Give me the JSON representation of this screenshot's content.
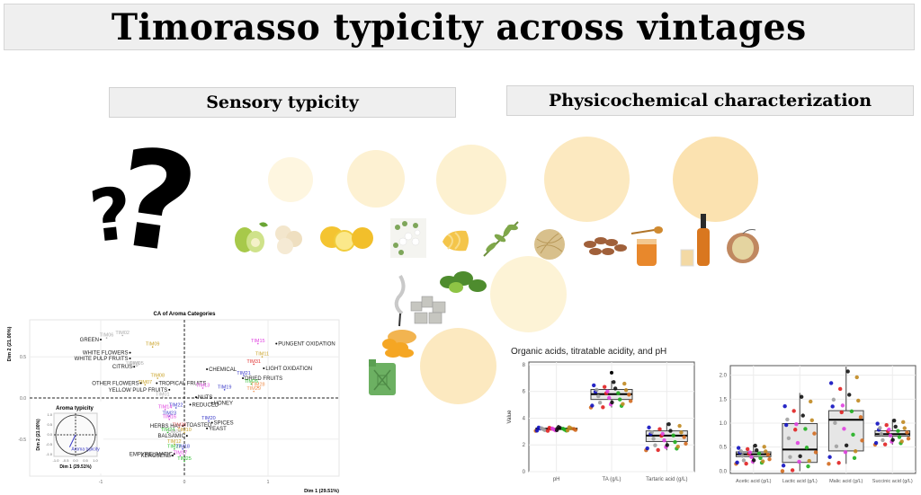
{
  "header": {
    "title": "Timorasso typicity across vintages"
  },
  "sections": {
    "sensory": "Sensory typicity",
    "physicochemical": "Physicochemical characterization"
  },
  "icons": {
    "question_large": "?",
    "question_small": "?",
    "aroma_icons": [
      "pear-icon",
      "banana-icon",
      "lemon-icon",
      "white-flowers-icon",
      "butter-icon",
      "herb-branch-icon",
      "hay-icon",
      "almonds-icon",
      "honey-icon",
      "whisky-icon",
      "oxidized-apple-icon",
      "smoke-icon",
      "stones-icon",
      "green-leaves-icon",
      "dried-apricot-icon",
      "jerry-can-icon"
    ]
  },
  "colors": {
    "bubble_light": "#fdf2d4",
    "bubble_mid": "#fce8be",
    "bubble_dark": "#fbe0ae",
    "header_bg": "#efefef"
  },
  "chart_data": [
    {
      "type": "scatter",
      "title": "CA of Aroma Categories",
      "xlabel": "Dim 1 (29.51%)",
      "ylabel": "Dim 2 (21.00%)",
      "xlim": [
        -1.85,
        1.85
      ],
      "ylim": [
        -0.95,
        0.95
      ],
      "xticks": [
        "-1",
        "0",
        "1"
      ],
      "yticks": [
        "-0.5",
        "0.0",
        "0.5"
      ],
      "grid": true,
      "categories": [
        {
          "label": "GREEN",
          "x": -1.0,
          "y": 0.71
        },
        {
          "label": "WHITE FLOWERS",
          "x": -0.65,
          "y": 0.55
        },
        {
          "label": "WHITE PULP FRUITS",
          "x": -0.65,
          "y": 0.48
        },
        {
          "label": "CITRUS",
          "x": -0.6,
          "y": 0.38
        },
        {
          "label": "OTHER FLOWERS",
          "x": -0.52,
          "y": 0.18
        },
        {
          "label": "TROPICAL FRUITS",
          "x": -0.33,
          "y": 0.18
        },
        {
          "label": "YELLOW PULP FRUITS",
          "x": -0.18,
          "y": 0.1
        },
        {
          "label": "CHEMICAL",
          "x": 0.27,
          "y": 0.35
        },
        {
          "label": "PUNGENT OXIDATION",
          "x": 1.1,
          "y": 0.66
        },
        {
          "label": "LIGHT OXIDATION",
          "x": 0.95,
          "y": 0.36
        },
        {
          "label": "DRIED FRUITS",
          "x": 0.7,
          "y": 0.24
        },
        {
          "label": "NUTS",
          "x": 0.14,
          "y": 0.01
        },
        {
          "label": "HONEY",
          "x": 0.33,
          "y": -0.06
        },
        {
          "label": "REDUCED",
          "x": 0.07,
          "y": -0.08
        },
        {
          "label": "SPICES",
          "x": 0.33,
          "y": -0.3
        },
        {
          "label": "TOASTED",
          "x": 0.0,
          "y": -0.33
        },
        {
          "label": "HERBS HAY",
          "x": -0.02,
          "y": -0.34
        },
        {
          "label": "YEAST",
          "x": 0.27,
          "y": -0.37
        },
        {
          "label": "BALSAMIC",
          "x": 0.03,
          "y": -0.46
        },
        {
          "label": "KEROSENE",
          "x": -0.14,
          "y": -0.7
        },
        {
          "label": "EMPYREUMATIC",
          "x": -0.12,
          "y": -0.68
        }
      ],
      "samples": [
        {
          "label": "TIM06",
          "x": -0.93,
          "y": 0.73,
          "color": "#aaaaaa"
        },
        {
          "label": "TIM02",
          "x": -0.74,
          "y": 0.76,
          "color": "#aaaaaa"
        },
        {
          "label": "TIM09",
          "x": -0.38,
          "y": 0.62,
          "color": "#c9a227"
        },
        {
          "label": "TIM03",
          "x": -0.62,
          "y": 0.38,
          "color": "#aaaaaa"
        },
        {
          "label": "TIM05",
          "x": -0.57,
          "y": 0.39,
          "color": "#aaaaaa"
        },
        {
          "label": "TIM08",
          "x": -0.32,
          "y": 0.24,
          "color": "#c9a227"
        },
        {
          "label": "TIM07",
          "x": -0.47,
          "y": 0.16,
          "color": "#c9a227"
        },
        {
          "label": "TIM01",
          "x": -0.26,
          "y": 0.01,
          "color": "#aaaaaa"
        },
        {
          "label": "TIM15",
          "x": 0.88,
          "y": 0.66,
          "color": "#e040e0"
        },
        {
          "label": "TIM11",
          "x": 0.93,
          "y": 0.5,
          "color": "#c9a227"
        },
        {
          "label": "TIM31",
          "x": 0.83,
          "y": 0.41,
          "color": "#e03030"
        },
        {
          "label": "TIM21",
          "x": 0.71,
          "y": 0.27,
          "color": "#3a3ac8"
        },
        {
          "label": "TIM13",
          "x": 0.22,
          "y": 0.12,
          "color": "#e040e0"
        },
        {
          "label": "TIM19",
          "x": 0.48,
          "y": 0.1,
          "color": "#3a3ac8"
        },
        {
          "label": "TIM26",
          "x": 0.8,
          "y": 0.17,
          "color": "#30c030"
        },
        {
          "label": "TIM28",
          "x": 0.88,
          "y": 0.13,
          "color": "#f09050"
        },
        {
          "label": "TIM29",
          "x": 0.83,
          "y": 0.08,
          "color": "#f09050"
        },
        {
          "label": "TIM22",
          "x": -0.1,
          "y": -0.12,
          "color": "#3a3ac8"
        },
        {
          "label": "TIM14",
          "x": -0.23,
          "y": -0.14,
          "color": "#e040e0"
        },
        {
          "label": "TIM23",
          "x": -0.18,
          "y": -0.22,
          "color": "#3a3ac8"
        },
        {
          "label": "TIM16",
          "x": -0.18,
          "y": -0.26,
          "color": "#e040e0"
        },
        {
          "label": "TIM20",
          "x": 0.29,
          "y": -0.28,
          "color": "#3a3ac8"
        },
        {
          "label": "TIM30",
          "x": -0.06,
          "y": -0.36,
          "color": "#e06060"
        },
        {
          "label": "TIM24",
          "x": -0.2,
          "y": -0.42,
          "color": "#30c030"
        },
        {
          "label": "TIM04",
          "x": -0.12,
          "y": -0.44,
          "color": "#aaaaaa"
        },
        {
          "label": "TIM10",
          "x": 0.0,
          "y": -0.42,
          "color": "#c9a227"
        },
        {
          "label": "TIM12",
          "x": -0.12,
          "y": -0.56,
          "color": "#c9a227"
        },
        {
          "label": "TIM27",
          "x": -0.12,
          "y": -0.62,
          "color": "#30c030"
        },
        {
          "label": "TIM18",
          "x": -0.02,
          "y": -0.62,
          "color": "#3a3ac8"
        },
        {
          "label": "TIM17",
          "x": -0.05,
          "y": -0.7,
          "color": "#e040e0"
        },
        {
          "label": "TIM25",
          "x": 0.0,
          "y": -0.77,
          "color": "#30c030"
        }
      ],
      "inset": {
        "title": "Aroma typicity",
        "xlabel": "Dim 1 (29.51%)",
        "ylabel": "Dim 2 (21.00%)",
        "xticks": [
          "-1.0",
          "-0.5",
          "0.0",
          "0.5",
          "1.0"
        ],
        "yticks": [
          "1.0",
          "0.5",
          "0.0",
          "-0.5",
          "-1.0"
        ],
        "arrow_label": "Aroma typicity",
        "arrow": {
          "x": -0.3,
          "y": -0.62
        }
      }
    },
    {
      "type": "box",
      "title": "Organic acids, titratable acidity, and pH",
      "ylabel": "Value",
      "ylim": [
        0,
        8.2
      ],
      "yticks": [
        "0",
        "2",
        "4",
        "6",
        "8"
      ],
      "categories": [
        "pH",
        "TA (g/L)",
        "Tartaric acid (g/L)"
      ],
      "boxes": [
        {
          "category": "pH",
          "q1": 3.15,
          "median": 3.2,
          "q3": 3.25,
          "min": 3.05,
          "max": 3.35
        },
        {
          "category": "TA (g/L)",
          "q1": 5.4,
          "median": 5.8,
          "q3": 6.15,
          "min": 4.8,
          "max": 6.8,
          "outlier": 7.4
        },
        {
          "category": "Tartaric acid (g/L)",
          "q1": 2.25,
          "median": 2.7,
          "q3": 3.05,
          "min": 1.6,
          "max": 3.65
        }
      ]
    },
    {
      "type": "box",
      "title": "",
      "ylim": [
        -0.05,
        2.2
      ],
      "yticks": [
        "0.0",
        "0.5",
        "1.0",
        "1.5",
        "2.0"
      ],
      "categories": [
        "Acetic acid (g/L)",
        "Lactic acid (g/L)",
        "Malic acid (g/L)",
        "Succinic acid (g/L)"
      ],
      "boxes": [
        {
          "category": "Acetic acid (g/L)",
          "q1": 0.3,
          "median": 0.35,
          "q3": 0.4,
          "min": 0.15,
          "max": 0.55
        },
        {
          "category": "Lactic acid (g/L)",
          "q1": 0.18,
          "median": 0.45,
          "q3": 0.99,
          "min": 0.0,
          "max": 1.63
        },
        {
          "category": "Malic acid (g/L)",
          "q1": 0.42,
          "median": 1.07,
          "q3": 1.26,
          "min": 0.15,
          "max": 2.18
        },
        {
          "category": "Succinic acid (g/L)",
          "q1": 0.73,
          "median": 0.77,
          "q3": 0.84,
          "min": 0.55,
          "max": 1.08
        }
      ]
    }
  ]
}
